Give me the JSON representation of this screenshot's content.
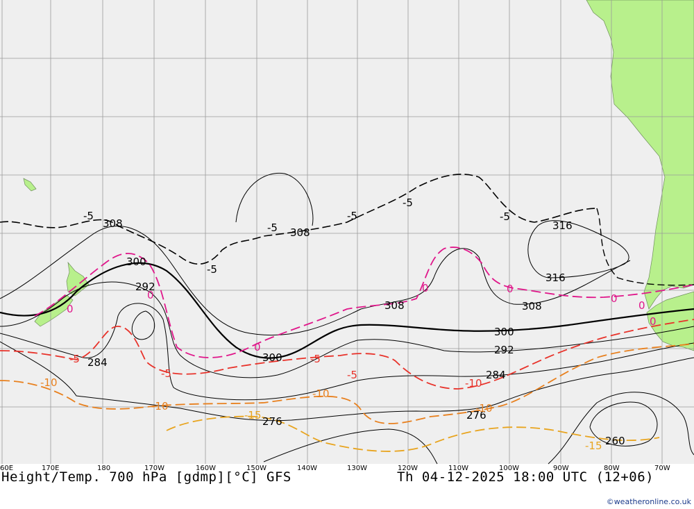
{
  "title": "Height/Temp. 700 hPa [gdmp][°C] GFS",
  "valid_time": "Th 04-12-2025 18:00 UTC (12+06)",
  "credit": "©weatheronline.co.uk",
  "colors": {
    "ocean": "#efefef",
    "land": "#b8f08c",
    "grid": "#9a9a9a",
    "height": "#000000",
    "temp_zero": "#e0168a",
    "temp_minus5": "#e8322a",
    "temp_minus10": "#e8801e",
    "temp_minus15": "#e8a41e"
  },
  "longitude_labels": [
    "60E",
    "170E",
    "180",
    "170W",
    "160W",
    "150W",
    "140W",
    "130W",
    "120W",
    "110W",
    "100W",
    "90W",
    "80W",
    "70W"
  ],
  "height_labels": [
    "308",
    "308",
    "300",
    "292",
    "284",
    "300",
    "308",
    "300",
    "292",
    "284",
    "276",
    "276",
    "316",
    "316",
    "308",
    "260"
  ],
  "temperature_labels": [
    "-5",
    "-5",
    "-5",
    "-5",
    "-5",
    "-5",
    "0",
    "0",
    "0",
    "0",
    "0",
    "0",
    "0",
    "0",
    "-5",
    "-5",
    "-5",
    "-5",
    "-10",
    "-10",
    "-10",
    "-10",
    "-15",
    "-15",
    "-10"
  ]
}
